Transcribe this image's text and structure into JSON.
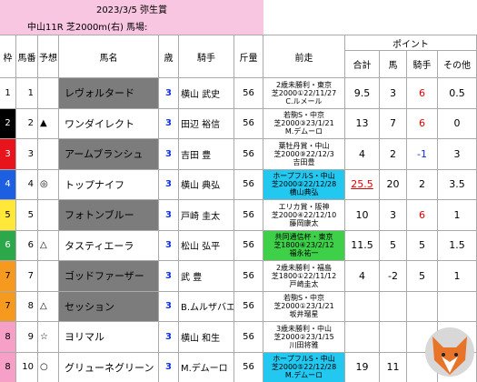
{
  "header": {
    "date_race": "2023/3/5 弥生賞",
    "course": "中山11R 芝2000m(右) 馬場:"
  },
  "table": {
    "columns": [
      "枠",
      "馬番",
      "予想",
      "馬名",
      "歳",
      "騎手",
      "斤量",
      "前走"
    ],
    "points_header": "ポイント",
    "point_columns": [
      "合計",
      "馬",
      "騎手",
      "その他"
    ],
    "rows": [
      {
        "frame": 1,
        "frame_color": "#ffffff",
        "number": 1,
        "mark": null,
        "name": "レヴォルタード",
        "name_shaded": true,
        "age": 3,
        "jockey": "横山 武史",
        "weight": 56,
        "prev": [
          "2歳未勝利・東京",
          "芝2000①22/11/27",
          "C.ルメール"
        ],
        "prev_bg": null,
        "points": [
          9.5,
          3,
          6,
          0.5
        ],
        "point_colors": [
          "#000",
          "#000",
          "#e00000",
          "#000"
        ]
      },
      {
        "frame": 2,
        "frame_color": "#000000",
        "number": 2,
        "mark": "▲",
        "name": "ワンダイレクト",
        "name_shaded": false,
        "age": 3,
        "jockey": "田辺 裕信",
        "weight": 56,
        "prev": [
          "若駒S・中京",
          "芝2000③23/1/21",
          "M.デムーロ"
        ],
        "prev_bg": null,
        "points": [
          13,
          7,
          6,
          0
        ],
        "point_colors": [
          "#000",
          "#000",
          "#e00000",
          "#000"
        ]
      },
      {
        "frame": 3,
        "frame_color": "#e8141c",
        "number": 3,
        "mark": null,
        "name": "アームブランシュ",
        "name_shaded": true,
        "age": 3,
        "jockey": "吉田 豊",
        "weight": 56,
        "prev": [
          "葉牡丹賞・中山",
          "芝2000⑨22/12/3",
          "吉田豊"
        ],
        "prev_bg": null,
        "points": [
          4,
          2,
          -1,
          3
        ],
        "point_colors": [
          "#000",
          "#000",
          "#1030e0",
          "#000"
        ]
      },
      {
        "frame": 4,
        "frame_color": "#1c5fe0",
        "number": 4,
        "mark": "◎",
        "name": "トップナイフ",
        "name_shaded": false,
        "age": 3,
        "jockey": "横山 典弘",
        "weight": 56,
        "prev": [
          "ホープフルS・中山",
          "芝2000②22/12/28",
          "横山典弘"
        ],
        "prev_bg": "#22c8f0",
        "points": [
          25.5,
          20,
          2,
          3.5
        ],
        "point_colors": [
          "#e00000",
          "#000",
          "#000",
          "#000"
        ]
      },
      {
        "frame": 5,
        "frame_color": "#ffe83a",
        "number": 5,
        "mark": null,
        "name": "フォトンブルー",
        "name_shaded": true,
        "age": 3,
        "jockey": "戸崎 圭太",
        "weight": 56,
        "prev": [
          "エリカ賞・阪神",
          "芝2000④22/12/10",
          "藤岡康太"
        ],
        "prev_bg": null,
        "points": [
          10,
          3,
          6,
          1
        ],
        "point_colors": [
          "#000",
          "#000",
          "#e00000",
          "#000"
        ]
      },
      {
        "frame": 6,
        "frame_color": "#2ca84a",
        "number": 6,
        "mark": "△",
        "name": "タスティエーラ",
        "name_shaded": false,
        "age": 3,
        "jockey": "松山 弘平",
        "weight": 56,
        "prev": [
          "共同通信杯・東京",
          "芝1800④23/2/12",
          "福永祐一"
        ],
        "prev_bg": "#3fd04a",
        "points": [
          11.5,
          5,
          5,
          1.5
        ],
        "point_colors": [
          "#000",
          "#000",
          "#000",
          "#000"
        ]
      },
      {
        "frame": 7,
        "frame_color": "#f59a1e",
        "number": 7,
        "mark": null,
        "name": "ゴッドファーザー",
        "name_shaded": true,
        "age": 3,
        "jockey": "武 豊",
        "weight": 56,
        "prev": [
          "2歳未勝利・福島",
          "芝1800①22/11/12",
          "戸崎圭太"
        ],
        "prev_bg": null,
        "points": [
          4,
          -2,
          5,
          1
        ],
        "point_colors": [
          "#000",
          "#000",
          "#000",
          "#000"
        ]
      },
      {
        "frame": 7,
        "frame_color": "#f59a1e",
        "number": 8,
        "mark": "△",
        "name": "セッション",
        "name_shaded": true,
        "age": 3,
        "jockey": "B.ムルザバエフ",
        "weight": 56,
        "prev": [
          "若駒S・中京",
          "芝2000①23/1/21",
          "坂井瑠星"
        ],
        "prev_bg": null,
        "points": [
          null,
          null,
          null,
          null
        ],
        "point_colors": [
          "#000",
          "#000",
          "#000",
          "#000"
        ]
      },
      {
        "frame": 8,
        "frame_color": "#f6a0c8",
        "number": 9,
        "mark": "☆",
        "name": "ヨリマル",
        "name_shaded": false,
        "age": 3,
        "jockey": "横山 和生",
        "weight": 56,
        "prev": [
          "3歳未勝利・中山",
          "芝2000②23/1/15",
          "川田将雅"
        ],
        "prev_bg": null,
        "points": [
          null,
          null,
          null,
          null
        ],
        "point_colors": [
          "#000",
          "#000",
          "#000",
          "#000"
        ]
      },
      {
        "frame": 8,
        "frame_color": "#f6a0c8",
        "number": 10,
        "mark": "○",
        "name": "グリューネグリーン",
        "name_shaded": false,
        "age": 3,
        "jockey": "M.デムーロ",
        "weight": 56,
        "prev": [
          "ホープフルS・中山",
          "芝2000⑤22/12/28",
          "M.デムーロ"
        ],
        "prev_bg": "#22c8f0",
        "points": [
          19,
          11,
          null,
          null
        ],
        "point_colors": [
          "#000",
          "#000",
          "#000",
          "#000"
        ]
      }
    ]
  }
}
